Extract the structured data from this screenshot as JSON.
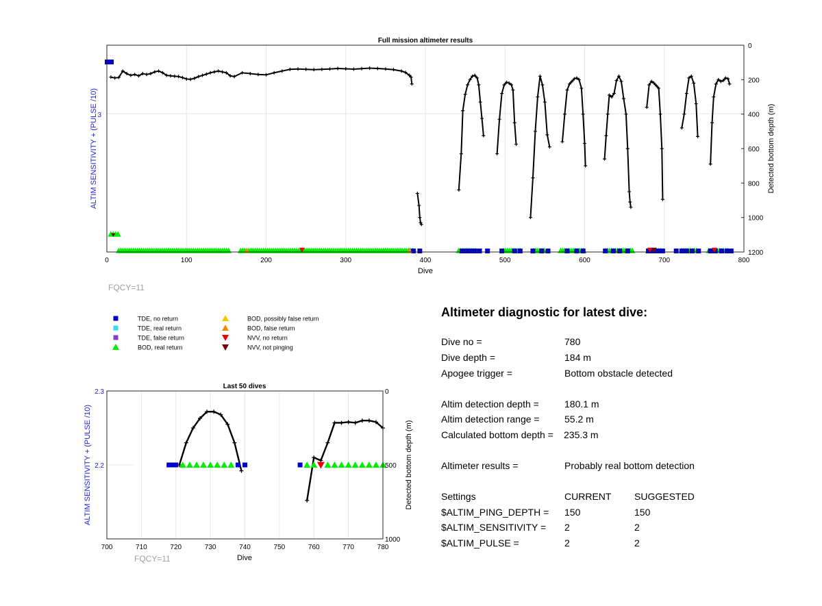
{
  "chart_data": [
    {
      "type": "line",
      "title": "Full mission altimeter results",
      "xlabel": "Dive",
      "ylabel_left": "ALTIM SENSITIVITY + (PULSE /10)",
      "ylabel_right": "Detected bottom depth (m)",
      "xlim": [
        0,
        800
      ],
      "xticks": [
        "0",
        "100",
        "200",
        "300",
        "400",
        "500",
        "600",
        "700",
        "800"
      ],
      "yticks_right": [
        "0",
        "200",
        "400",
        "600",
        "800",
        "1000",
        "1200"
      ],
      "ytick_left": "3",
      "right_ylim": [
        0,
        1200
      ],
      "grid": true,
      "note": "FQCY=11",
      "series": [
        {
          "name": "Detected bottom depth",
          "segments": [
            [
              [
                5,
                185
              ],
              [
                10,
                190
              ],
              [
                15,
                187
              ],
              [
                20,
                150
              ],
              [
                25,
                165
              ],
              [
                30,
                175
              ],
              [
                35,
                170
              ],
              [
                40,
                178
              ],
              [
                45,
                165
              ],
              [
                50,
                170
              ],
              [
                55,
                165
              ],
              [
                60,
                155
              ],
              [
                65,
                150
              ],
              [
                70,
                160
              ],
              [
                75,
                175
              ],
              [
                80,
                178
              ],
              [
                85,
                180
              ],
              [
                90,
                182
              ],
              [
                95,
                188
              ],
              [
                100,
                196
              ],
              [
                105,
                198
              ],
              [
                110,
                192
              ],
              [
                115,
                182
              ],
              [
                120,
                175
              ],
              [
                125,
                168
              ],
              [
                130,
                160
              ],
              [
                135,
                155
              ],
              [
                140,
                150
              ],
              [
                145,
                155
              ],
              [
                150,
                160
              ],
              [
                155,
                178
              ],
              [
                160,
                182
              ],
              [
                170,
                160
              ],
              [
                180,
                165
              ],
              [
                190,
                170
              ],
              [
                200,
                172
              ],
              [
                210,
                160
              ],
              [
                220,
                150
              ],
              [
                230,
                140
              ],
              [
                240,
                138
              ],
              [
                250,
                140
              ],
              [
                260,
                142
              ],
              [
                270,
                140
              ],
              [
                280,
                138
              ],
              [
                290,
                135
              ],
              [
                300,
                137
              ],
              [
                310,
                139
              ],
              [
                320,
                136
              ],
              [
                330,
                133
              ],
              [
                340,
                135
              ],
              [
                350,
                138
              ],
              [
                360,
                142
              ],
              [
                370,
                150
              ],
              [
                375,
                158
              ],
              [
                380,
                175
              ],
              [
                382,
                185
              ],
              [
                383,
                225
              ]
            ],
            [
              [
                390,
                860
              ],
              [
                392,
                930
              ],
              [
                393,
                1000
              ],
              [
                394,
                1030
              ],
              [
                395,
                1040
              ]
            ],
            [
              [
                442,
                840
              ],
              [
                445,
                630
              ],
              [
                447,
                380
              ],
              [
                450,
                285
              ],
              [
                453,
                230
              ],
              [
                456,
                200
              ],
              [
                459,
                180
              ],
              [
                462,
                175
              ],
              [
                465,
                190
              ],
              [
                467,
                230
              ],
              [
                469,
                330
              ],
              [
                471,
                425
              ],
              [
                473,
                525
              ]
            ],
            [
              [
                490,
                630
              ],
              [
                493,
                430
              ],
              [
                496,
                280
              ],
              [
                499,
                230
              ],
              [
                502,
                215
              ],
              [
                505,
                220
              ],
              [
                508,
                230
              ],
              [
                510,
                260
              ],
              [
                512,
                450
              ],
              [
                514,
                575
              ]
            ],
            [
              [
                532,
                1000
              ],
              [
                535,
                770
              ],
              [
                538,
                500
              ],
              [
                541,
                300
              ],
              [
                544,
                180
              ],
              [
                547,
                230
              ],
              [
                550,
                330
              ],
              [
                553,
                520
              ],
              [
                556,
                590
              ]
            ],
            [
              [
                572,
                560
              ],
              [
                575,
                400
              ],
              [
                578,
                260
              ],
              [
                581,
                225
              ],
              [
                584,
                210
              ],
              [
                587,
                195
              ],
              [
                590,
                190
              ],
              [
                593,
                200
              ],
              [
                596,
                250
              ],
              [
                598,
                400
              ],
              [
                600,
                570
              ],
              [
                601,
                700
              ]
            ],
            [
              [
                625,
                660
              ],
              [
                627,
                525
              ],
              [
                629,
                400
              ],
              [
                631,
                290
              ],
              [
                634,
                300
              ],
              [
                637,
                280
              ],
              [
                640,
                205
              ],
              [
                643,
                180
              ],
              [
                646,
                210
              ],
              [
                649,
                310
              ],
              [
                652,
                400
              ],
              [
                654,
                600
              ],
              [
                656,
                850
              ],
              [
                657,
                910
              ],
              [
                658,
                940
              ]
            ],
            [
              [
                678,
                360
              ],
              [
                681,
                230
              ],
              [
                684,
                210
              ],
              [
                687,
                220
              ],
              [
                690,
                235
              ],
              [
                693,
                250
              ],
              [
                695,
                400
              ],
              [
                697,
                600
              ],
              [
                698,
                895
              ]
            ],
            [
              [
                722,
                480
              ],
              [
                725,
                400
              ],
              [
                728,
                280
              ],
              [
                731,
                190
              ],
              [
                734,
                180
              ],
              [
                737,
                220
              ],
              [
                740,
                340
              ],
              [
                742,
                530
              ]
            ],
            [
              [
                758,
                690
              ],
              [
                760,
                450
              ],
              [
                762,
                300
              ],
              [
                765,
                225
              ],
              [
                768,
                200
              ],
              [
                771,
                210
              ],
              [
                774,
                205
              ],
              [
                777,
                190
              ],
              [
                780,
                195
              ],
              [
                782,
                225
              ]
            ]
          ]
        },
        {
          "name": "TDE, no return",
          "marker": "square",
          "color": "#0000cc",
          "y_level": "bottom",
          "points": [
            385,
            393,
            446,
            452,
            458,
            462,
            468,
            478,
            496,
            512,
            519,
            535,
            546,
            554,
            578,
            590,
            598,
            626,
            636,
            644,
            654,
            680,
            686,
            692,
            698,
            715,
            722,
            728,
            735,
            743,
            758,
            764,
            772,
            779,
            784
          ]
        }
      ]
    },
    {
      "type": "line",
      "title": "Last 50 dives",
      "xlabel": "Dive",
      "ylabel_left": "ALTIM SENSITIVITY + (PULSE /10)",
      "ylabel_right": "Detected bottom depth (m)",
      "xlim": [
        700,
        780
      ],
      "ylim_left": [
        2.1,
        2.3
      ],
      "xticks": [
        "700",
        "710",
        "720",
        "730",
        "740",
        "750",
        "760",
        "770",
        "780"
      ],
      "yticks_left": [
        "2.3",
        "2.2"
      ],
      "yticks_right": [
        "0",
        "500",
        "1000"
      ],
      "right_ylim": [
        0,
        1000
      ],
      "grid": true,
      "note": "FQCY=11",
      "series": [
        {
          "name": "Detected bottom depth",
          "segments": [
            [
              [
                721,
                500
              ],
              [
                723,
                350
              ],
              [
                725,
                250
              ],
              [
                727,
                185
              ],
              [
                729,
                140
              ],
              [
                731,
                140
              ],
              [
                733,
                160
              ],
              [
                735,
                225
              ],
              [
                737,
                350
              ],
              [
                739,
                540
              ]
            ],
            [
              [
                758,
                740
              ],
              [
                760,
                450
              ],
              [
                762,
                470
              ],
              [
                764,
                350
              ],
              [
                766,
                215
              ],
              [
                768,
                215
              ],
              [
                770,
                210
              ],
              [
                772,
                215
              ],
              [
                774,
                200
              ],
              [
                776,
                200
              ],
              [
                778,
                210
              ],
              [
                780,
                250
              ]
            ]
          ]
        },
        {
          "name": "TDE, no return",
          "marker": "square",
          "color": "#0000cc",
          "y_value": 2.2,
          "points": [
            718,
            719,
            720,
            738,
            740,
            756
          ]
        },
        {
          "name": "BOD, real return",
          "marker": "triangle-up",
          "color": "#00ee00",
          "y_value": 2.2,
          "points": [
            722,
            724,
            726,
            728,
            730,
            732,
            734,
            736,
            758,
            760,
            764,
            766,
            768,
            770,
            772,
            774,
            776,
            778,
            780
          ]
        },
        {
          "name": "NVV, no return",
          "marker": "triangle-down",
          "color": "#ee0000",
          "y_value": 2.2,
          "points": [
            762
          ]
        }
      ]
    }
  ],
  "legend": {
    "left": [
      {
        "label": "TDE, no return",
        "marker": "square",
        "color": "#0000cc"
      },
      {
        "label": "TDE, real return",
        "marker": "square",
        "color": "#33ddee"
      },
      {
        "label": "TDE, false return",
        "marker": "square",
        "color": "#8a3cc8"
      },
      {
        "label": "BOD, real return",
        "marker": "triangle-up",
        "color": "#00ee00"
      }
    ],
    "right": [
      {
        "label": "BOD, possibly false return",
        "marker": "triangle-up",
        "color": "#f5c800"
      },
      {
        "label": "BOD, false return",
        "marker": "triangle-up",
        "color": "#f08c00"
      },
      {
        "label": "NVV, no return",
        "marker": "triangle-down",
        "color": "#ee0000"
      },
      {
        "label": "NVV, not pinging",
        "marker": "triangle-down",
        "color": "#7a0000"
      }
    ]
  },
  "diagnostic": {
    "title": "Altimeter diagnostic for latest dive:",
    "rows": [
      {
        "label": "Dive no =",
        "value": "780"
      },
      {
        "label": "Dive depth =",
        "value": "184 m"
      },
      {
        "label": "Apogee trigger =",
        "value": "Bottom obstacle detected"
      },
      {
        "label": "Altim detection depth =",
        "value": "180.1 m"
      },
      {
        "label": "Altim detection range =",
        "value": "55.2 m"
      },
      {
        "label": "Calculated bottom depth =",
        "value": "235.3 m"
      },
      {
        "label": "Altimeter results =",
        "value": "Probably real bottom detection"
      }
    ],
    "settings": {
      "header": [
        "Settings",
        "CURRENT",
        "SUGGESTED"
      ],
      "rows": [
        [
          "$ALTIM_PING_DEPTH =",
          "150",
          "150"
        ],
        [
          "$ALTIM_SENSITIVITY =",
          "2",
          "2"
        ],
        [
          "$ALTIM_PULSE =",
          "2",
          "2"
        ]
      ]
    }
  }
}
